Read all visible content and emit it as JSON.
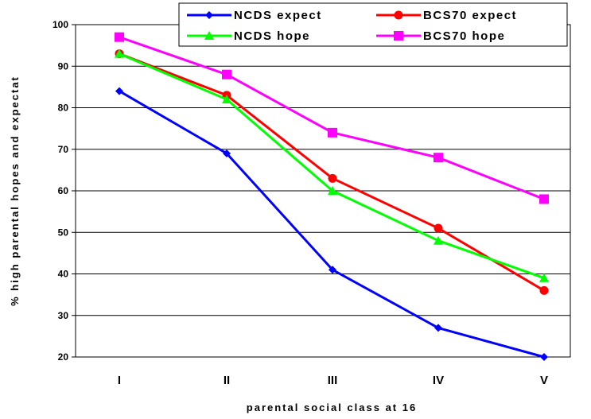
{
  "chart_data": {
    "type": "line",
    "categories": [
      "I",
      "II",
      "III",
      "IV",
      "V"
    ],
    "xlabel": "parental social class at 16",
    "ylabel": "% high parental hopes and expectat",
    "ylim": [
      20,
      100
    ],
    "yticks": [
      20,
      30,
      40,
      50,
      60,
      70,
      80,
      90,
      100
    ],
    "grid": true,
    "legend_position": "top",
    "series": [
      {
        "name": "NCDS expect",
        "values": [
          84,
          69,
          41,
          27,
          20
        ],
        "color": "#0000FF",
        "marker": "diamond"
      },
      {
        "name": "BCS70 expect",
        "values": [
          93,
          83,
          63,
          51,
          36
        ],
        "color": "#FF0000",
        "marker": "circle"
      },
      {
        "name": "NCDS hope",
        "values": [
          93,
          82,
          60,
          48,
          39
        ],
        "color": "#00FF00",
        "marker": "triangle"
      },
      {
        "name": "BCS70 hope",
        "values": [
          97,
          88,
          74,
          68,
          58
        ],
        "color": "#FF00FF",
        "marker": "square"
      }
    ]
  }
}
